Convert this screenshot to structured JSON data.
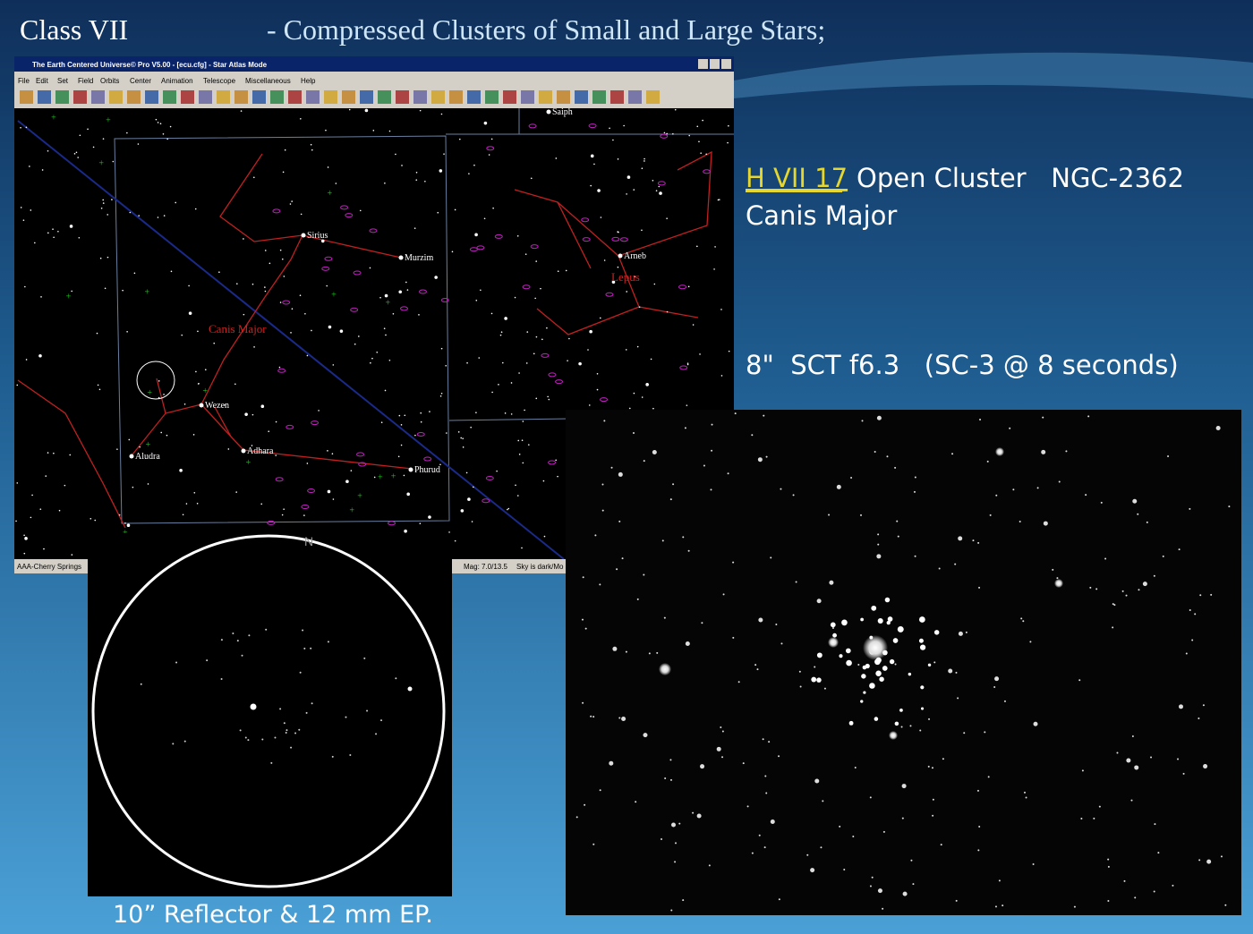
{
  "slide": {
    "title_left": "Class VII",
    "title_right": "- Compressed Clusters of Small and Large Stars;",
    "object_id": "H VII 17",
    "object_desc": "Open Cluster   NGC-2362",
    "constellation": "Canis Major",
    "scope": "8\"  SCT f6.3   (SC-3 @ 8 seconds)",
    "sketch_caption": "10” Reflector & 12 mm EP."
  },
  "window": {
    "title": "The Earth Centered Universe© Pro V5.00 - [ecu.cfg] - Star Atlas Mode",
    "menu": [
      "File",
      "Edit",
      "Set",
      "Field",
      "Orbits",
      "Center",
      "Animation",
      "Telescope",
      "Miscellaneous",
      "Help"
    ],
    "status": [
      "AAA-Cherry Springs",
      "Mag: 7.0/13.5",
      "Sky is dark/Mo"
    ]
  },
  "map": {
    "star_labels": [
      "Saiph",
      "Sirius",
      "Murzim",
      "Arneb",
      "Wezen",
      "Adhara",
      "Aludra",
      "Phurud"
    ],
    "constellation_labels": [
      "Canis Major",
      "Lepus"
    ]
  },
  "sketch": {
    "north": "N"
  }
}
